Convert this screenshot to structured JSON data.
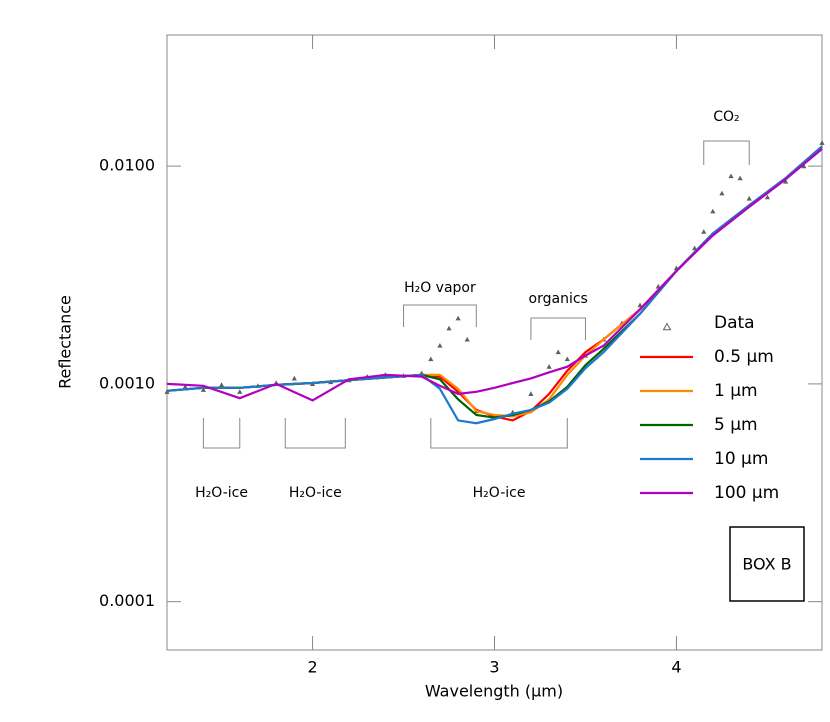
{
  "chart_data": {
    "type": "line",
    "xlabel": "Wavelength (μm)",
    "ylabel": "Reflectance",
    "xlim": [
      1.2,
      4.8
    ],
    "xticks": [
      2,
      3,
      4
    ],
    "ylim": [
      6e-05,
      0.04
    ],
    "log_y": true,
    "yticks": [
      {
        "value": 0.0001,
        "label": "0.0001"
      },
      {
        "value": 0.001,
        "label": "0.0010"
      },
      {
        "value": 0.01,
        "label": "0.0100"
      }
    ],
    "x": [
      1.2,
      1.4,
      1.6,
      1.8,
      2.0,
      2.2,
      2.4,
      2.6,
      2.7,
      2.8,
      2.9,
      3.0,
      3.1,
      3.2,
      3.3,
      3.4,
      3.5,
      3.6,
      3.8,
      4.0,
      4.2,
      4.4,
      4.6,
      4.8
    ],
    "series": [
      {
        "name": "Data",
        "color": "#606060",
        "marker": "triangle",
        "x": [
          1.2,
          1.3,
          1.4,
          1.5,
          1.6,
          1.7,
          1.8,
          1.9,
          2.0,
          2.1,
          2.2,
          2.3,
          2.4,
          2.5,
          2.6,
          2.65,
          2.7,
          2.75,
          2.8,
          2.85,
          2.9,
          3.0,
          3.1,
          3.2,
          3.3,
          3.35,
          3.4,
          3.5,
          3.6,
          3.7,
          3.8,
          3.9,
          4.0,
          4.1,
          4.15,
          4.2,
          4.25,
          4.3,
          4.35,
          4.4,
          4.5,
          4.6,
          4.7,
          4.8
        ],
        "values": [
          0.00092,
          0.00097,
          0.00094,
          0.00099,
          0.00092,
          0.00098,
          0.00101,
          0.00106,
          0.001,
          0.00102,
          0.00104,
          0.00108,
          0.0011,
          0.00109,
          0.00112,
          0.0013,
          0.0015,
          0.0018,
          0.002,
          0.0016,
          0.00075,
          0.00071,
          0.00074,
          0.0009,
          0.0012,
          0.0014,
          0.0013,
          0.00135,
          0.0016,
          0.0019,
          0.0023,
          0.0028,
          0.0034,
          0.0042,
          0.005,
          0.0062,
          0.0075,
          0.009,
          0.0088,
          0.0071,
          0.0072,
          0.0085,
          0.01,
          0.0128
        ]
      },
      {
        "name": "0.5 μm",
        "color": "#ff0000",
        "values": [
          0.00093,
          0.00096,
          0.00096,
          0.00099,
          0.00101,
          0.00104,
          0.00107,
          0.0011,
          0.00108,
          0.00092,
          0.00076,
          0.00071,
          0.00068,
          0.00075,
          0.0009,
          0.00115,
          0.0014,
          0.0016,
          0.0022,
          0.0033,
          0.0049,
          0.0066,
          0.0088,
          0.0123
        ]
      },
      {
        "name": "1 μm",
        "color": "#ff8c00",
        "values": [
          0.00093,
          0.00096,
          0.00096,
          0.00099,
          0.00101,
          0.00104,
          0.00107,
          0.0011,
          0.0011,
          0.00095,
          0.00075,
          0.00072,
          0.00071,
          0.00074,
          0.00085,
          0.0011,
          0.00135,
          0.0016,
          0.0022,
          0.0033,
          0.0049,
          0.0066,
          0.0088,
          0.0123
        ]
      },
      {
        "name": "5 μm",
        "color": "#006400",
        "values": [
          0.00093,
          0.00096,
          0.00096,
          0.00099,
          0.00101,
          0.00104,
          0.00107,
          0.0011,
          0.00105,
          0.00085,
          0.00072,
          0.0007,
          0.00072,
          0.00076,
          0.00083,
          0.00097,
          0.00122,
          0.00145,
          0.0021,
          0.0033,
          0.0049,
          0.0066,
          0.0088,
          0.0123
        ]
      },
      {
        "name": "10 μm",
        "color": "#1e78d0",
        "values": [
          0.00093,
          0.00096,
          0.00096,
          0.00099,
          0.00101,
          0.00104,
          0.00107,
          0.0011,
          0.00095,
          0.00068,
          0.00066,
          0.00069,
          0.00073,
          0.00076,
          0.00082,
          0.00095,
          0.00118,
          0.0014,
          0.0021,
          0.0033,
          0.0049,
          0.0066,
          0.0088,
          0.0123
        ]
      },
      {
        "name": "100 μm",
        "color": "#b000c0",
        "values": [
          0.001,
          0.00098,
          0.00086,
          0.001,
          0.00084,
          0.00105,
          0.0011,
          0.00108,
          0.00098,
          0.0009,
          0.00092,
          0.00096,
          0.00101,
          0.00106,
          0.00113,
          0.0012,
          0.00135,
          0.0015,
          0.0022,
          0.0033,
          0.0048,
          0.0065,
          0.0087,
          0.012
        ]
      }
    ],
    "annotations": [
      "H₂O-ice",
      "H₂O-ice",
      "H₂O-ice",
      "H₂O vapor",
      "organics",
      "CO₂"
    ],
    "box_label": "BOX B"
  }
}
